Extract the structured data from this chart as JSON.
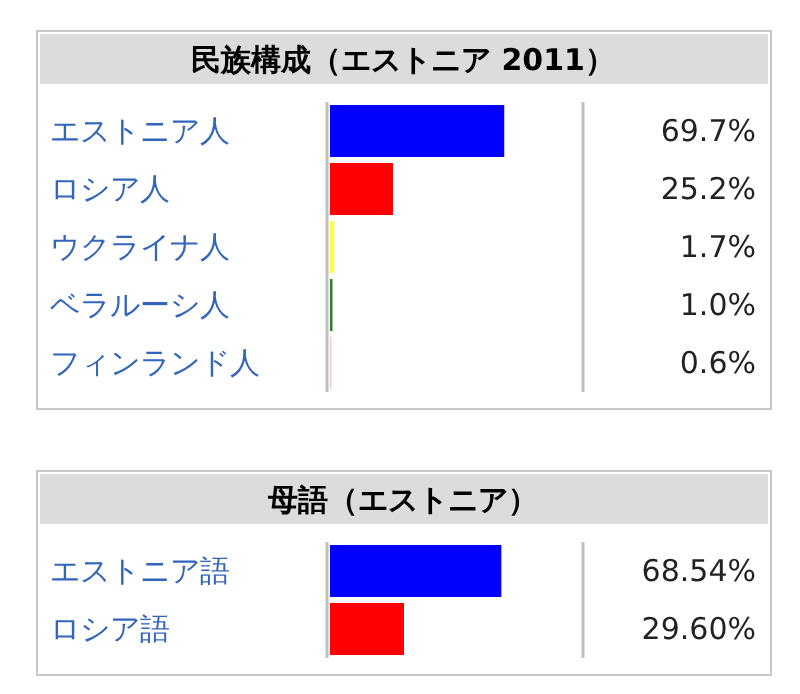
{
  "chart_data": [
    {
      "type": "bar",
      "orientation": "horizontal",
      "title": "民族構成（エストニア 2011）",
      "categories": [
        "エストニア人",
        "ロシア人",
        "ウクライナ人",
        "ベラルーシ人",
        "フィンランド人"
      ],
      "values": [
        69.7,
        25.2,
        1.7,
        1.0,
        0.6
      ],
      "value_labels": [
        "69.7%",
        "25.2%",
        "1.7%",
        "1.0%",
        "0.6%"
      ],
      "colors": [
        "#0000ff",
        "#ff0000",
        "#ffff44",
        "#2e7d32",
        "#f2c8d2"
      ],
      "xlim": [
        0,
        100
      ]
    },
    {
      "type": "bar",
      "orientation": "horizontal",
      "title": "母語（エストニア）",
      "categories": [
        "エストニア語",
        "ロシア語"
      ],
      "values": [
        68.54,
        29.6
      ],
      "value_labels": [
        "68.54%",
        "29.60%"
      ],
      "colors": [
        "#0000ff",
        "#ff0000"
      ],
      "xlim": [
        0,
        100
      ]
    }
  ]
}
